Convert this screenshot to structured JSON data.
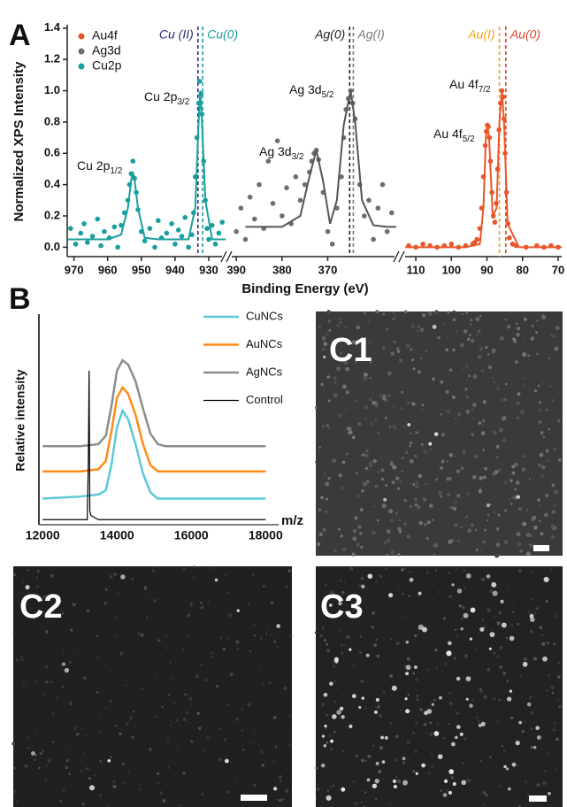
{
  "panels": [
    "A",
    "B"
  ],
  "chart_data": [
    {
      "type": "scatter",
      "ylabel": "Normalized XPS Intensity",
      "xlabel": "Binding Energy (eV)",
      "ylim": [
        -0.06,
        1.41
      ],
      "yticks": [
        {
          "value": 0,
          "label": "0.0"
        },
        0.2,
        0.4,
        0.6,
        0.8,
        {
          "value": 1,
          "label": "1.0"
        },
        1.2,
        1.4
      ],
      "legend": "upper left",
      "segments": [
        {
          "xlim": [
            972,
            925
          ],
          "xticks": [
            970,
            960,
            950,
            940,
            930
          ],
          "series": {
            "name": "Cu2p",
            "color": "#1a9e9e",
            "x": [
              971,
              969.5,
              968,
              967,
              966,
              964.5,
              963,
              962,
              961,
              959.5,
              958,
              957,
              956,
              955,
              954,
              953.5,
              953,
              952.5,
              952,
              951.5,
              951,
              950,
              949,
              947.5,
              946,
              945,
              944,
              942.5,
              941,
              940,
              939,
              938,
              937,
              936,
              935,
              934.5,
              934,
              933.5,
              933,
              932.7,
              932.3,
              932,
              931.5,
              931,
              930.5,
              930,
              929,
              928,
              927,
              926
            ],
            "values": [
              0.12,
              0.02,
              0.09,
              0.15,
              0.03,
              0.07,
              0.18,
              0.01,
              0.1,
              0.06,
              0.13,
              0.0,
              0.14,
              0.22,
              0.3,
              0.4,
              0.47,
              0.55,
              0.44,
              0.35,
              0.24,
              0.1,
              0.04,
              0.12,
              0.0,
              0.17,
              0.06,
              0.09,
              0.15,
              0.02,
              0.11,
              0.07,
              0.19,
              0.0,
              0.08,
              0.22,
              0.45,
              0.7,
              0.92,
              1.06,
              0.98,
              0.85,
              0.55,
              0.3,
              0.12,
              0.05,
              0.14,
              0.02,
              0.09,
              0.16
            ],
            "fit": {
              "color": "#1a9e9e",
              "x": [
                972,
                960,
                956,
                954,
                953,
                952.5,
                952,
                951,
                949,
                945,
                936,
                934,
                933,
                932.5,
                932,
                931,
                929,
                925
              ],
              "values": [
                0.05,
                0.05,
                0.08,
                0.25,
                0.43,
                0.48,
                0.43,
                0.25,
                0.06,
                0.05,
                0.05,
                0.25,
                0.8,
                1.0,
                0.8,
                0.3,
                0.05,
                0.05
              ]
            }
          },
          "markers": [
            {
              "label": "Cu (II)",
              "x": 933.2,
              "color": "#2b2b7a"
            },
            {
              "label": "Cu(0)",
              "x": 931.8,
              "color": "#1a9e9e"
            }
          ],
          "peaks": [
            {
              "text": "Cu 2p",
              "sub": "1/2"
            },
            {
              "text": "Cu 2p",
              "sub": "3/2"
            }
          ]
        },
        {
          "xlim": [
            391,
            355
          ],
          "xticks": [
            390,
            380,
            370
          ],
          "series": {
            "name": "Ag3d",
            "color": "#6e6e6e",
            "x": [
              390,
              389,
              388,
              387,
              386,
              385,
              384,
              383,
              382,
              381,
              380,
              379,
              378,
              377,
              376,
              375,
              374,
              373.5,
              373,
              372.5,
              372,
              371,
              370,
              369,
              368,
              367,
              366.5,
              366,
              365.5,
              365,
              364.5,
              364,
              363,
              362,
              361,
              360,
              359,
              358,
              357,
              356
            ],
            "values": [
              0.1,
              0.25,
              0.05,
              0.32,
              0.18,
              0.4,
              0.12,
              0.55,
              0.28,
              0.68,
              0.2,
              0.38,
              0.15,
              0.45,
              0.3,
              0.4,
              0.48,
              0.55,
              0.6,
              0.62,
              0.56,
              0.35,
              0.1,
              0.02,
              0.25,
              0.45,
              0.7,
              0.88,
              0.95,
              1.0,
              0.92,
              0.82,
              0.4,
              0.2,
              0.3,
              0.05,
              0.25,
              0.4,
              0.1,
              0.22
            ],
            "fit": {
              "color": "#555555",
              "x": [
                388,
                380,
                376,
                374,
                372.5,
                371,
                369.5,
                368,
                366.5,
                365,
                364,
                362.5,
                360,
                357,
                355
              ],
              "values": [
                0.13,
                0.13,
                0.2,
                0.45,
                0.62,
                0.42,
                0.15,
                0.3,
                0.78,
                1.0,
                0.8,
                0.3,
                0.14,
                0.13,
                0.13
              ]
            }
          },
          "markers": [
            {
              "label": "Ag(0)",
              "x": 365.2,
              "color": "#222222"
            },
            {
              "label": "Ag(I)",
              "x": 364.4,
              "color": "#777777"
            }
          ],
          "peaks": [
            {
              "text": "Ag 3d",
              "sub": "3/2"
            },
            {
              "text": "Ag 3d",
              "sub": "5/2"
            }
          ]
        },
        {
          "xlim": [
            113,
            69
          ],
          "xticks": [
            110,
            100,
            90,
            80,
            70
          ],
          "series": {
            "name": "Au4f",
            "color": "#e8562a",
            "x": [
              112,
              110,
              108,
              106,
              104,
              102,
              100,
              98,
              96,
              94,
              93.5,
              92.8,
              92,
              91.5,
              91,
              90.5,
              90.2,
              89.9,
              89.6,
              89.3,
              89,
              88.6,
              88.2,
              87.8,
              87.4,
              87,
              86.6,
              86.2,
              85.8,
              85.5,
              85.2,
              84.9,
              84.5,
              84.1,
              83.7,
              82.8,
              81.8,
              79,
              76,
              74,
              72,
              70
            ],
            "values": [
              0.01,
              0.0,
              0.02,
              0.01,
              0.0,
              0.01,
              0.02,
              0.0,
              0.01,
              0.02,
              0.03,
              0.05,
              0.12,
              0.25,
              0.45,
              0.65,
              0.74,
              0.78,
              0.77,
              0.7,
              0.55,
              0.35,
              0.2,
              0.16,
              0.28,
              0.5,
              0.75,
              0.92,
              1.0,
              0.96,
              0.82,
              0.6,
              0.35,
              0.15,
              0.06,
              0.02,
              0.01,
              0.0,
              0.01,
              0.0,
              0.01,
              0.0
            ],
            "fit": {
              "color": "#e8562a",
              "x": [
                113,
                96,
                92,
                91,
                90.3,
                89.9,
                89.4,
                88.4,
                87.3,
                86.5,
                85.8,
                85.2,
                84.2,
                81,
                69
              ],
              "values": [
                0,
                0,
                0.02,
                0.25,
                0.7,
                0.78,
                0.7,
                0.2,
                0.25,
                0.8,
                1.0,
                0.8,
                0.15,
                0,
                0
              ]
            }
          },
          "markers": [
            {
              "label": "Au(I)",
              "x": 86.5,
              "color": "#f0a020"
            },
            {
              "label": "Au(0)",
              "x": 84.7,
              "color": "#e0402a"
            }
          ],
          "peaks": [
            {
              "text": "Au 4f",
              "sub": "5/2"
            },
            {
              "text": "Au 4f",
              "sub": "7/2"
            }
          ]
        }
      ]
    },
    {
      "type": "line",
      "ylabel": "Relative intensity",
      "xlabel": "m/z",
      "xlim": [
        11900,
        18350
      ],
      "ylim": [
        0,
        1
      ],
      "xticks": [
        12000,
        14000,
        16000,
        18000
      ],
      "series": [
        {
          "name": "CuNCs",
          "color": "#5bc8d6",
          "x": [
            12000,
            13000,
            13500,
            13700,
            13850,
            14000,
            14150,
            14300,
            14500,
            14700,
            14900,
            15100,
            15300,
            16000,
            18000
          ],
          "values": [
            0.12,
            0.13,
            0.14,
            0.16,
            0.28,
            0.46,
            0.54,
            0.5,
            0.38,
            0.24,
            0.15,
            0.12,
            0.12,
            0.12,
            0.12
          ]
        },
        {
          "name": "AuNCs",
          "color": "#ff8c1a",
          "x": [
            12000,
            13000,
            13500,
            13700,
            13850,
            14000,
            14150,
            14300,
            14500,
            14700,
            14900,
            15100,
            15300,
            16000,
            18000
          ],
          "values": [
            0.25,
            0.25,
            0.26,
            0.3,
            0.44,
            0.6,
            0.65,
            0.62,
            0.52,
            0.38,
            0.28,
            0.25,
            0.25,
            0.25,
            0.25
          ]
        },
        {
          "name": "AgNCs",
          "color": "#8c8c8c",
          "x": [
            12000,
            13000,
            13500,
            13700,
            13850,
            14000,
            14150,
            14300,
            14500,
            14700,
            14900,
            15100,
            15300,
            16000,
            18000
          ],
          "values": [
            0.37,
            0.37,
            0.38,
            0.42,
            0.56,
            0.73,
            0.78,
            0.76,
            0.68,
            0.55,
            0.43,
            0.38,
            0.37,
            0.37,
            0.37
          ]
        },
        {
          "name": "Control",
          "color": "#000000",
          "x": [
            12000,
            13200,
            13230,
            13250,
            13270,
            13300,
            13400,
            13500,
            14000,
            18000
          ],
          "values": [
            0.02,
            0.02,
            0.3,
            0.73,
            0.06,
            0.04,
            0.03,
            0.02,
            0.02,
            0.02
          ]
        }
      ]
    }
  ],
  "images": [
    {
      "label": "C1"
    },
    {
      "label": "C2"
    },
    {
      "label": "C3"
    }
  ]
}
